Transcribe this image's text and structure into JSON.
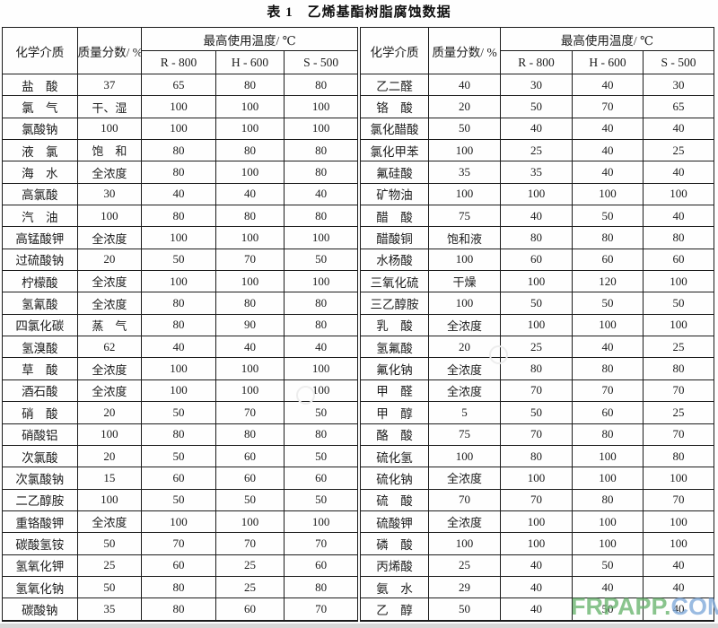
{
  "page": {
    "title": "表 1　乙烯基酯树脂腐蚀数据"
  },
  "table": {
    "headers": {
      "chemical": "化学介质",
      "mass_fraction": "质量分数/ %",
      "max_temp": "最高使用温度/ ℃",
      "grades": [
        "R - 800",
        "H - 600",
        "S - 500"
      ]
    },
    "left_rows": [
      [
        "盐　酸",
        "37",
        "65",
        "80",
        "80"
      ],
      [
        "氯　气",
        "干、湿",
        "100",
        "100",
        "100"
      ],
      [
        "氯酸钠",
        "100",
        "100",
        "100",
        "100"
      ],
      [
        "液　氯",
        "饱　和",
        "80",
        "80",
        "80"
      ],
      [
        "海　水",
        "全浓度",
        "80",
        "100",
        "80"
      ],
      [
        "高氯酸",
        "30",
        "40",
        "40",
        "40"
      ],
      [
        "汽　油",
        "100",
        "80",
        "80",
        "80"
      ],
      [
        "高锰酸钾",
        "全浓度",
        "100",
        "100",
        "100"
      ],
      [
        "过硫酸钠",
        "20",
        "50",
        "70",
        "50"
      ],
      [
        "柠檬酸",
        "全浓度",
        "100",
        "100",
        "100"
      ],
      [
        "氢氰酸",
        "全浓度",
        "80",
        "80",
        "80"
      ],
      [
        "四氯化碳",
        "蒸　气",
        "80",
        "90",
        "80"
      ],
      [
        "氢溴酸",
        "62",
        "40",
        "40",
        "40"
      ],
      [
        "草　酸",
        "全浓度",
        "100",
        "100",
        "100"
      ],
      [
        "酒石酸",
        "全浓度",
        "100",
        "100",
        "100"
      ],
      [
        "硝　酸",
        "20",
        "50",
        "70",
        "50"
      ],
      [
        "硝酸铝",
        "100",
        "80",
        "80",
        "80"
      ],
      [
        "次氯酸",
        "20",
        "50",
        "60",
        "50"
      ],
      [
        "次氯酸钠",
        "15",
        "60",
        "60",
        "60"
      ],
      [
        "二乙醇胺",
        "100",
        "50",
        "50",
        "50"
      ],
      [
        "重铬酸钾",
        "全浓度",
        "100",
        "100",
        "100"
      ],
      [
        "碳酸氢铵",
        "50",
        "70",
        "70",
        "70"
      ],
      [
        "氢氧化钾",
        "25",
        "60",
        "25",
        "60"
      ],
      [
        "氢氧化钠",
        "50",
        "80",
        "25",
        "80"
      ],
      [
        "碳酸钠",
        "35",
        "80",
        "60",
        "70"
      ]
    ],
    "right_rows": [
      [
        "乙二醛",
        "40",
        "30",
        "40",
        "30"
      ],
      [
        "铬　酸",
        "20",
        "50",
        "70",
        "65"
      ],
      [
        "氯化醋酸",
        "50",
        "40",
        "40",
        "40"
      ],
      [
        "氯化甲苯",
        "100",
        "25",
        "40",
        "25"
      ],
      [
        "氟硅酸",
        "35",
        "35",
        "40",
        "40"
      ],
      [
        "矿物油",
        "100",
        "100",
        "100",
        "100"
      ],
      [
        "醋　酸",
        "75",
        "40",
        "50",
        "40"
      ],
      [
        "醋酸铜",
        "饱和液",
        "80",
        "80",
        "80"
      ],
      [
        "水杨酸",
        "100",
        "60",
        "60",
        "60"
      ],
      [
        "三氧化硫",
        "干燥",
        "100",
        "120",
        "100"
      ],
      [
        "三乙醇胺",
        "100",
        "50",
        "50",
        "50"
      ],
      [
        "乳　酸",
        "全浓度",
        "100",
        "100",
        "100"
      ],
      [
        "氢氟酸",
        "20",
        "25",
        "40",
        "25"
      ],
      [
        "氟化钠",
        "全浓度",
        "80",
        "80",
        "80"
      ],
      [
        "甲　醛",
        "全浓度",
        "70",
        "70",
        "70"
      ],
      [
        "甲　醇",
        "5",
        "50",
        "60",
        "25"
      ],
      [
        "酪　酸",
        "75",
        "70",
        "80",
        "70"
      ],
      [
        "硫化氢",
        "100",
        "80",
        "100",
        "80"
      ],
      [
        "硫化钠",
        "全浓度",
        "100",
        "100",
        "100"
      ],
      [
        "硫　酸",
        "70",
        "70",
        "80",
        "70"
      ],
      [
        "硫酸钾",
        "全浓度",
        "100",
        "100",
        "100"
      ],
      [
        "磷　酸",
        "100",
        "100",
        "100",
        "100"
      ],
      [
        "丙烯酸",
        "25",
        "40",
        "50",
        "40"
      ],
      [
        "氨　水",
        "29",
        "40",
        "40",
        "40"
      ],
      [
        "乙　醇",
        "50",
        "40",
        "50",
        "40"
      ]
    ]
  },
  "watermark": {
    "green_part": "FRPAPP.",
    "blue_part": "COM",
    "green_color": "#69b56e",
    "blue_color": "#7fa9d9"
  }
}
